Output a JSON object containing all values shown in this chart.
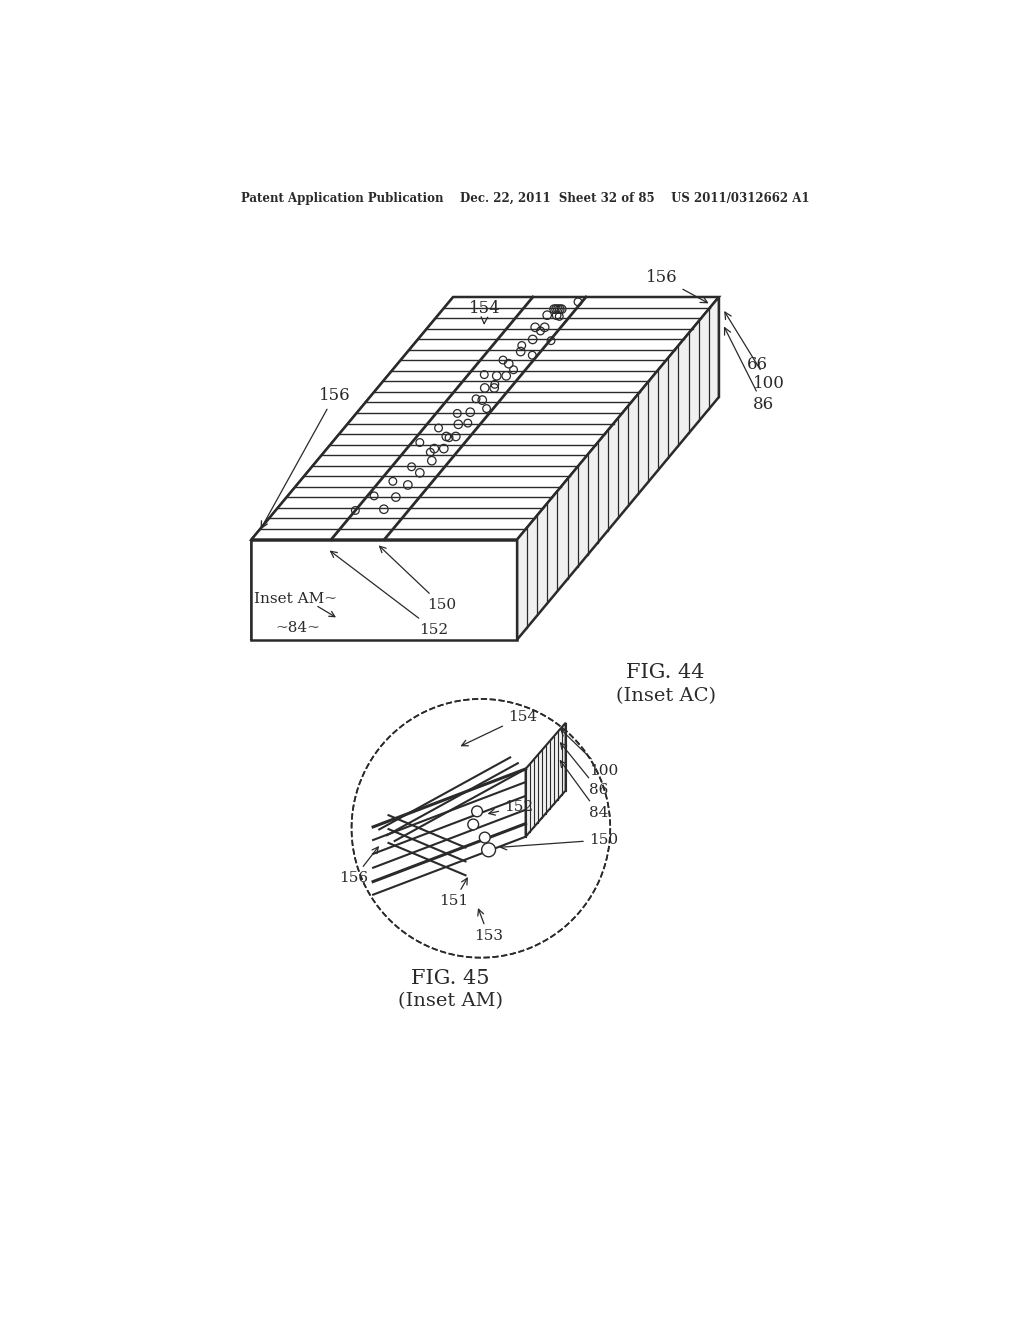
{
  "bg_color": "#ffffff",
  "line_color": "#2a2a2a",
  "fig_width": 10.24,
  "fig_height": 13.2,
  "header": "Patent Application Publication    Dec. 22, 2011  Sheet 32 of 85    US 2011/0312662 A1",
  "fig44_caption_line1": "FIG. 44",
  "fig44_caption_line2": "(Inset AC)",
  "fig45_caption_line1": "FIG. 45",
  "fig45_caption_line2": "(Inset AM)"
}
